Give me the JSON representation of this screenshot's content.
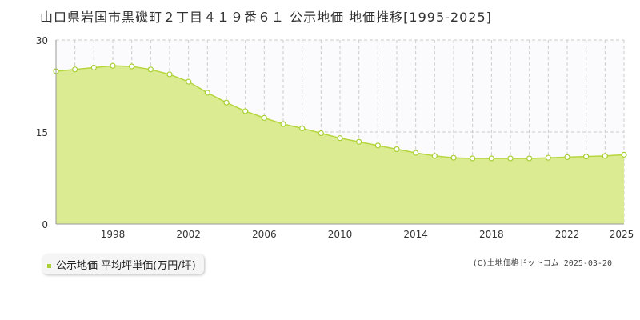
{
  "title": "山口県岩国市黒磯町２丁目４１９番６１ 公示地価 地価推移[1995-2025]",
  "legend": {
    "label": "公示地価 平均坪単価(万円/坪)",
    "color": "#a8cf33"
  },
  "copyright": "(C)土地価格ドットコム 2025-03-20",
  "chart_data": {
    "type": "area",
    "title": "山口県岩国市黒磯町２丁目４１９番６１ 公示地価 地価推移[1995-2025]",
    "xlabel": "",
    "ylabel": "",
    "xlim": [
      1995,
      2025
    ],
    "ylim": [
      0,
      30
    ],
    "y_ticks": [
      "0",
      "15",
      "30"
    ],
    "x_ticks": [
      "1998",
      "2002",
      "2006",
      "2010",
      "2014",
      "2018",
      "2022",
      "2025"
    ],
    "series": [
      {
        "name": "公示地価 平均坪単価(万円/坪)",
        "x": [
          1995,
          1996,
          1997,
          1998,
          1999,
          2000,
          2001,
          2002,
          2003,
          2004,
          2005,
          2006,
          2007,
          2008,
          2009,
          2010,
          2011,
          2012,
          2013,
          2014,
          2015,
          2016,
          2017,
          2018,
          2019,
          2020,
          2021,
          2022,
          2023,
          2024,
          2025
        ],
        "values": [
          24.9,
          25.2,
          25.5,
          25.8,
          25.7,
          25.2,
          24.4,
          23.2,
          21.4,
          19.8,
          18.4,
          17.3,
          16.3,
          15.6,
          14.8,
          14.0,
          13.4,
          12.8,
          12.2,
          11.6,
          11.1,
          10.8,
          10.7,
          10.7,
          10.7,
          10.7,
          10.8,
          10.9,
          11.0,
          11.1,
          11.3
        ]
      }
    ],
    "grid": true,
    "colors": {
      "fill": "#dbeb91",
      "line": "#b5d63d",
      "marker_fill": "#ffffff",
      "marker_stroke": "#a8cf33",
      "grid": "#cccccc"
    }
  }
}
